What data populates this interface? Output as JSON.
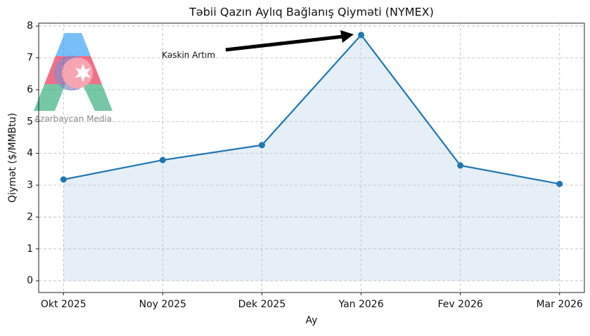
{
  "chart_data": {
    "type": "line",
    "title": "Təbii Qazın Aylıq Bağlanış Qiyməti (NYMEX)",
    "x_label": "Ay",
    "y_label": "Qiymət ($/MMBtu)",
    "categories": [
      "Okt 2025",
      "Noy 2025",
      "Dek 2025",
      "Yan 2026",
      "Fev 2026",
      "Mar 2026"
    ],
    "series": [
      {
        "name": "Qiymət",
        "color": "#1f77b4",
        "values": [
          3.18,
          3.79,
          4.26,
          7.72,
          3.62,
          3.04
        ]
      }
    ],
    "area_fill": "#dce8f4",
    "ylim": [
      -0.37,
      8.09
    ],
    "yticks": [
      0,
      1,
      2,
      3,
      4,
      5,
      6,
      7,
      8
    ],
    "grid": true,
    "annotation": "Kəskin Artım",
    "watermark": "Azərbaycan Media"
  }
}
